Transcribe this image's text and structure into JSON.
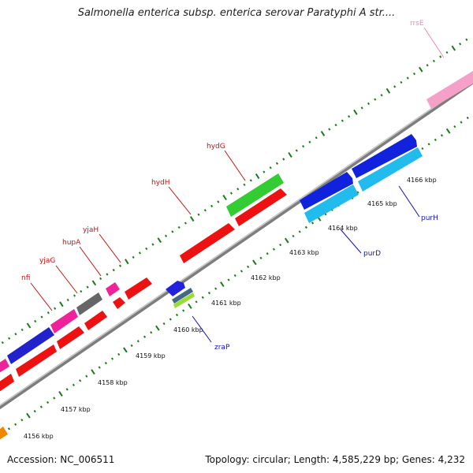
{
  "title": "Salmonella enterica subsp. enterica serovar Paratyphi A str....",
  "footer": {
    "accession": "Accession: NC_006511",
    "topology": "Topology: circular; Length: 4,585,229 bp; Genes: 4,232"
  },
  "colors": {
    "backbone": "#8a8a8a",
    "tick": "#1a7a1a",
    "label_forward": "#cc1111",
    "label_reverse": "#1111cc",
    "label_rrs": "#ee88bb"
  },
  "scale": {
    "unit": "kbp",
    "ticks": [
      {
        "label": "4156 kbp"
      },
      {
        "label": "4157 kbp"
      },
      {
        "label": "4158 kbp"
      },
      {
        "label": "4159 kbp"
      },
      {
        "label": "4160 kbp"
      },
      {
        "label": "4161 kbp"
      },
      {
        "label": "4162 kbp"
      },
      {
        "label": "4163 kbp"
      },
      {
        "label": "4164 kbp"
      },
      {
        "label": "4165 kbp"
      },
      {
        "label": "4166 kbp"
      }
    ]
  },
  "gene_labels": [
    {
      "name": "nfi",
      "strand": "forward"
    },
    {
      "name": "yjaG",
      "strand": "forward"
    },
    {
      "name": "hupA",
      "strand": "forward"
    },
    {
      "name": "yjaH",
      "strand": "forward"
    },
    {
      "name": "hydH",
      "strand": "forward"
    },
    {
      "name": "hydG",
      "strand": "forward"
    },
    {
      "name": "rrsE",
      "strand": "forward"
    },
    {
      "name": "zraP",
      "strand": "reverse"
    },
    {
      "name": "purD",
      "strand": "reverse"
    },
    {
      "name": "purH",
      "strand": "reverse"
    }
  ]
}
